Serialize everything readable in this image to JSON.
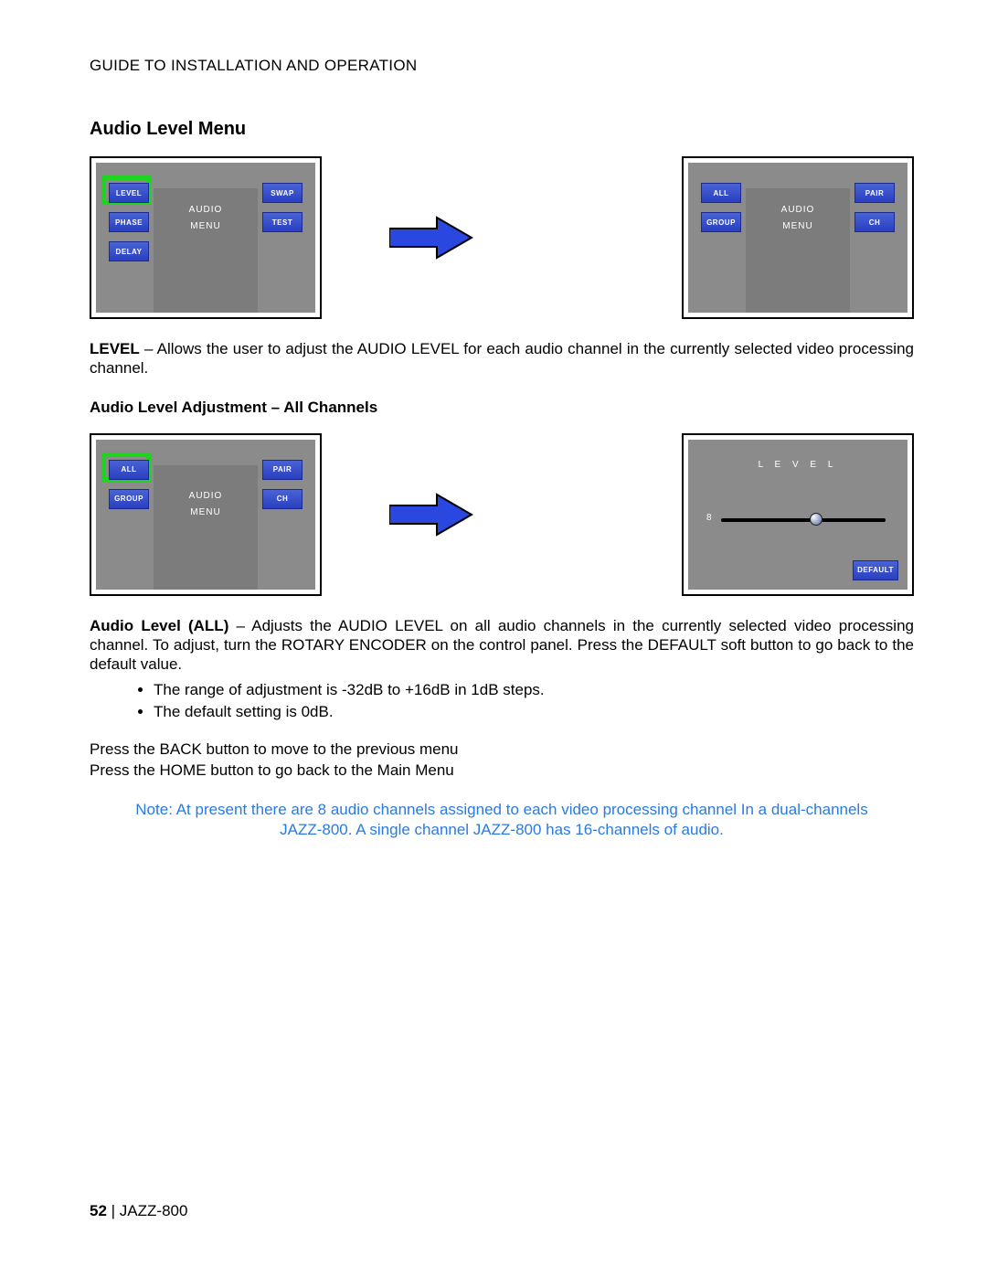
{
  "header": "GUIDE TO INSTALLATION AND OPERATION",
  "section_title": "Audio Level Menu",
  "fig1_left": {
    "center_line1": "AUDIO",
    "center_line2": "MENU",
    "btns": {
      "level": "LEVEL",
      "phase": "PHASE",
      "delay": "DELAY",
      "swap": "SWAP",
      "test": "TEST"
    },
    "highlight_color": "#1fd41f"
  },
  "fig1_right": {
    "center_line1": "AUDIO",
    "center_line2": "MENU",
    "btns": {
      "all": "ALL",
      "group": "GROUP",
      "pair": "PAIR",
      "ch": "CH"
    }
  },
  "para_level_bold": "LEVEL",
  "para_level_rest": " – Allows the user to adjust the AUDIO LEVEL for each audio channel in the currently selected video processing channel.",
  "subhead_all": "Audio Level Adjustment – All Channels",
  "fig2_left": {
    "center_line1": "AUDIO",
    "center_line2": "MENU",
    "btns": {
      "all": "ALL",
      "group": "GROUP",
      "pair": "PAIR",
      "ch": "CH"
    }
  },
  "fig2_right": {
    "title": "L E V E L",
    "value": "8",
    "default_btn": "DEFAULT",
    "slider_pos_pct": 58
  },
  "para_all_bold": "Audio Level (ALL)",
  "para_all_rest": " – Adjusts the AUDIO LEVEL on all audio channels in the currently selected video processing channel. To adjust, turn the ROTARY ENCODER on the control panel. Press the DEFAULT soft button to go back to the default value.",
  "bullet1": "The range of adjustment is -32dB to +16dB in 1dB steps.",
  "bullet2": "The default setting is 0dB.",
  "nav1": "Press the BACK button to move to the previous menu",
  "nav2": "Press the HOME button to go back to the Main Menu",
  "note_line1": "Note: At present there are 8 audio channels assigned to each video processing channel In a dual-channels",
  "note_line2": "JAZZ-800. A single channel JAZZ-800 has 16-channels of audio.",
  "footer_page": "52",
  "footer_sep": "  |  ",
  "footer_model": "JAZZ-800",
  "colors": {
    "btn_grad_top": "#4a63d6",
    "btn_grad_bot": "#2a3fbf",
    "panel_bg": "#8b8b8b",
    "panel_inner": "#7c7c7c",
    "arrow_fill": "#2a48e0",
    "note_color": "#2a7ae2"
  }
}
